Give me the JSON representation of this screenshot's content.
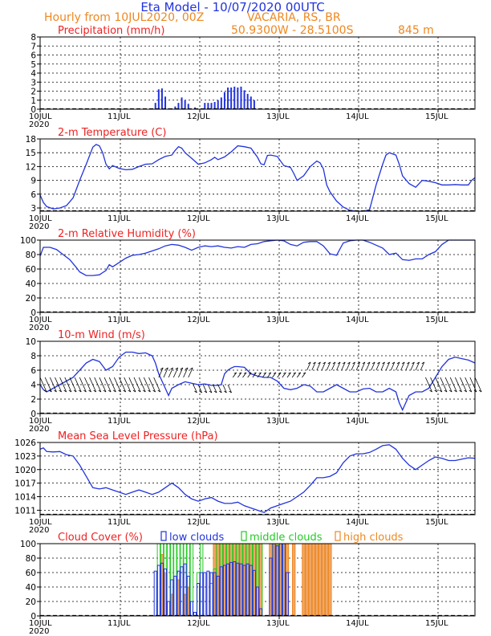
{
  "header": {
    "title": "Eta Model - 10/07/2020 00UTC",
    "subtitle_run": "Hourly from 10JUL2020, 00Z",
    "location": "VACARIA, RS, BR",
    "coords": "50.9300W - 28.5100S",
    "elevation": "845  m"
  },
  "colors": {
    "title": "#2233dd",
    "orange": "#ee8822",
    "panel_title": "#ee2222",
    "blue": "#2233dd",
    "green": "#22cc22",
    "high": "#f0a868",
    "high_edge": "#ee8822"
  },
  "x_axis": {
    "ticks": [
      "10JUL",
      "11JUL",
      "12JUL",
      "13JUL",
      "14JUL",
      "15JUL"
    ],
    "year": "2020"
  },
  "chart_data": [
    {
      "type": "bar",
      "title": "Precipitation (mm/h)",
      "yticks": [
        0,
        1,
        2,
        3,
        4,
        5,
        6,
        7,
        8
      ],
      "ylim": [
        0,
        8
      ],
      "xlim_hours": [
        0,
        132
      ],
      "bars": [
        {
          "x": 35,
          "y": 0.7
        },
        {
          "x": 36,
          "y": 2.2
        },
        {
          "x": 37,
          "y": 2.3
        },
        {
          "x": 38,
          "y": 1.4
        },
        {
          "x": 39,
          "y": 0.1
        },
        {
          "x": 41,
          "y": 0.3
        },
        {
          "x": 42,
          "y": 0.7
        },
        {
          "x": 43,
          "y": 1.3
        },
        {
          "x": 44,
          "y": 1.0
        },
        {
          "x": 45,
          "y": 0.6
        },
        {
          "x": 47,
          "y": 0.2
        },
        {
          "x": 50,
          "y": 0.7
        },
        {
          "x": 51,
          "y": 0.7
        },
        {
          "x": 52,
          "y": 0.7
        },
        {
          "x": 53,
          "y": 0.8
        },
        {
          "x": 54,
          "y": 1.0
        },
        {
          "x": 55,
          "y": 1.3
        },
        {
          "x": 56,
          "y": 1.9
        },
        {
          "x": 57,
          "y": 2.4
        },
        {
          "x": 58,
          "y": 2.4
        },
        {
          "x": 59,
          "y": 2.5
        },
        {
          "x": 60,
          "y": 2.4
        },
        {
          "x": 61,
          "y": 2.5
        },
        {
          "x": 62,
          "y": 2.1
        },
        {
          "x": 63,
          "y": 1.7
        },
        {
          "x": 64,
          "y": 1.4
        },
        {
          "x": 65,
          "y": 1.0
        },
        {
          "x": 74,
          "y": 0.1
        },
        {
          "x": 87,
          "y": 0.1
        }
      ]
    },
    {
      "type": "line",
      "title": "2-m Temperature (C)",
      "yticks": [
        3,
        6,
        9,
        12,
        15,
        18
      ],
      "ylim": [
        2.3,
        18
      ],
      "xlim_hours": [
        0,
        132
      ],
      "x": [
        0,
        1,
        2,
        4,
        6,
        8,
        10,
        12,
        14,
        16,
        17,
        18,
        19,
        20,
        21,
        22,
        24,
        26,
        28,
        30,
        32,
        34,
        36,
        38,
        40,
        41,
        42,
        43,
        44,
        46,
        48,
        50,
        52,
        53,
        54,
        56,
        58,
        60,
        62,
        64,
        66,
        67,
        68,
        69,
        70,
        72,
        74,
        76,
        77,
        78,
        80,
        82,
        84,
        85,
        86,
        87,
        88,
        90,
        92,
        94,
        96,
        98,
        100,
        102,
        104,
        105,
        106,
        108,
        109,
        110,
        112,
        114,
        116,
        118,
        120,
        122,
        124,
        126,
        128,
        130,
        131,
        132
      ],
      "values": [
        5.8,
        4.2,
        3.3,
        2.8,
        3.0,
        3.5,
        5.2,
        9.0,
        12.5,
        16.2,
        16.8,
        16.5,
        15.0,
        12.5,
        11.5,
        12.2,
        11.6,
        11.3,
        11.4,
        12.0,
        12.5,
        12.6,
        13.5,
        14.2,
        14.5,
        15.5,
        16.3,
        16.0,
        15.0,
        13.8,
        12.5,
        12.8,
        13.5,
        14.0,
        13.5,
        14.1,
        15.2,
        16.5,
        16.3,
        16.0,
        14.0,
        12.6,
        12.4,
        14.4,
        14.5,
        14.2,
        12.2,
        11.8,
        10.5,
        9.0,
        10.0,
        12.0,
        13.2,
        12.8,
        11.5,
        8.0,
        6.5,
        4.5,
        3.2,
        2.5,
        2.3,
        2.3,
        2.6,
        8.0,
        12.5,
        14.5,
        15.0,
        14.5,
        12.5,
        10.0,
        8.3,
        7.5,
        9.0,
        8.8,
        8.5,
        8.0,
        8.0,
        8.1,
        8.0,
        8.0,
        9.0,
        9.6
      ]
    },
    {
      "type": "line",
      "title": "2-m Relative Humidity (%)",
      "yticks": [
        0,
        20,
        40,
        60,
        80,
        100
      ],
      "ylim": [
        0,
        100
      ],
      "xlim_hours": [
        0,
        132
      ],
      "x": [
        0,
        1,
        3,
        5,
        7,
        9,
        11,
        12,
        14,
        16,
        18,
        20,
        21,
        22,
        24,
        26,
        28,
        30,
        32,
        34,
        36,
        38,
        40,
        42,
        44,
        46,
        48,
        50,
        52,
        54,
        56,
        58,
        60,
        62,
        64,
        66,
        68,
        70,
        72,
        74,
        76,
        78,
        80,
        82,
        84,
        86,
        88,
        90,
        92,
        94,
        96,
        98,
        100,
        102,
        104,
        106,
        108,
        110,
        112,
        114,
        116,
        118,
        120,
        122,
        124,
        126,
        128,
        130,
        132
      ],
      "values": [
        78,
        90,
        90,
        87,
        80,
        73,
        62,
        56,
        51,
        51,
        52,
        58,
        66,
        63,
        69,
        75,
        79,
        80,
        82,
        85,
        88,
        92,
        94,
        93,
        90,
        86,
        90,
        92,
        91,
        92,
        90,
        89,
        91,
        90,
        94,
        95,
        98,
        99,
        100,
        99,
        94,
        92,
        97,
        98,
        98,
        92,
        81,
        79,
        96,
        99,
        100,
        100,
        97,
        93,
        89,
        80,
        82,
        73,
        72,
        74,
        74,
        80,
        84,
        94,
        100,
        100,
        100,
        100,
        100
      ]
    },
    {
      "type": "line",
      "title": "10-m Wind (m/s)",
      "yticks": [
        0,
        2,
        4,
        6,
        8,
        10
      ],
      "ylim": [
        0,
        10
      ],
      "xlim_hours": [
        0,
        132
      ],
      "x": [
        0,
        1,
        2,
        4,
        6,
        8,
        10,
        12,
        14,
        16,
        18,
        20,
        22,
        24,
        26,
        28,
        30,
        32,
        34,
        35,
        36,
        37,
        38,
        39,
        40,
        42,
        44,
        46,
        48,
        50,
        52,
        54,
        55,
        56,
        57,
        58,
        59,
        60,
        62,
        64,
        66,
        68,
        70,
        72,
        74,
        76,
        78,
        80,
        82,
        84,
        86,
        88,
        90,
        92,
        94,
        96,
        98,
        100,
        102,
        104,
        106,
        108,
        109,
        110,
        111,
        112,
        114,
        116,
        118,
        120,
        122,
        124,
        126,
        128,
        130,
        132
      ],
      "values": [
        4.0,
        3.3,
        3.0,
        3.5,
        4.0,
        4.5,
        5.0,
        6.0,
        7.0,
        7.5,
        7.2,
        6.0,
        6.5,
        7.8,
        8.5,
        8.5,
        8.3,
        8.4,
        8.0,
        7.0,
        5.5,
        4.5,
        3.5,
        2.5,
        3.5,
        4.0,
        4.4,
        4.2,
        4.0,
        4.1,
        3.9,
        3.9,
        4.0,
        5.5,
        6.0,
        6.3,
        6.5,
        6.5,
        6.4,
        5.5,
        5.2,
        5.0,
        5.0,
        4.5,
        3.5,
        3.3,
        3.5,
        4.0,
        3.8,
        3.0,
        3.0,
        3.5,
        4.0,
        3.5,
        3.0,
        3.0,
        3.4,
        3.5,
        3.0,
        3.0,
        3.5,
        3.0,
        1.5,
        0.5,
        1.5,
        2.5,
        3.0,
        3.0,
        3.5,
        5.0,
        6.5,
        7.5,
        7.8,
        7.6,
        7.4,
        7.0
      ]
    },
    {
      "type": "line",
      "title": "Mean Sea Level Pressure (hPa)",
      "yticks": [
        1011,
        1014,
        1017,
        1020,
        1023,
        1026
      ],
      "ylim": [
        1010,
        1026
      ],
      "xlim_hours": [
        0,
        132
      ],
      "x": [
        0,
        1,
        2,
        4,
        6,
        8,
        10,
        12,
        14,
        16,
        18,
        20,
        22,
        24,
        26,
        28,
        30,
        32,
        34,
        36,
        38,
        40,
        42,
        44,
        46,
        48,
        50,
        52,
        54,
        56,
        58,
        60,
        62,
        64,
        66,
        68,
        70,
        72,
        74,
        76,
        78,
        80,
        82,
        84,
        86,
        88,
        90,
        92,
        94,
        96,
        98,
        100,
        102,
        104,
        106,
        108,
        110,
        112,
        114,
        116,
        118,
        120,
        122,
        124,
        126,
        128,
        130,
        132
      ],
      "values": [
        1024.5,
        1024.8,
        1024.0,
        1023.9,
        1024.0,
        1023.3,
        1023.0,
        1021.0,
        1018.5,
        1016.0,
        1015.7,
        1016.0,
        1015.5,
        1015.0,
        1014.5,
        1015.0,
        1015.5,
        1015.0,
        1014.5,
        1015.0,
        1016.0,
        1017.0,
        1016.0,
        1014.5,
        1013.5,
        1013.0,
        1013.5,
        1013.8,
        1013.0,
        1012.5,
        1012.5,
        1012.8,
        1012.0,
        1011.5,
        1011.0,
        1010.5,
        1011.5,
        1012.0,
        1012.5,
        1013.0,
        1014.0,
        1015.0,
        1016.5,
        1018.2,
        1018.2,
        1018.5,
        1019.3,
        1021.5,
        1023.0,
        1023.5,
        1023.5,
        1023.8,
        1024.5,
        1025.3,
        1025.5,
        1024.5,
        1022.5,
        1021.0,
        1020.0,
        1021.0,
        1022.0,
        1022.8,
        1022.5,
        1022.0,
        1022.0,
        1022.3,
        1022.6,
        1022.5
      ]
    },
    {
      "type": "bar",
      "title": "Cloud Cover (%)",
      "legend": [
        "low clouds",
        "middle clouds",
        "high clouds"
      ],
      "yticks": [
        0,
        20,
        40,
        60,
        80,
        100
      ],
      "ylim": [
        0,
        100
      ],
      "xlim_hours": [
        0,
        132
      ],
      "series": [
        {
          "name": "high clouds",
          "x": [
            37,
            38,
            40,
            42,
            44,
            45,
            53,
            54,
            55,
            56,
            57,
            58,
            59,
            60,
            61,
            62,
            63,
            64,
            65,
            66,
            67,
            70,
            71,
            72,
            73,
            74,
            75,
            77,
            80,
            81,
            82,
            83,
            84,
            85,
            86,
            87,
            88
          ],
          "values": [
            85,
            60,
            30,
            50,
            30,
            40,
            100,
            100,
            100,
            100,
            100,
            100,
            100,
            100,
            100,
            100,
            100,
            100,
            100,
            100,
            100,
            100,
            100,
            100,
            100,
            100,
            100,
            100,
            100,
            100,
            100,
            100,
            100,
            100,
            100,
            100,
            100
          ]
        },
        {
          "name": "middle clouds",
          "x": [
            36,
            37,
            38,
            39,
            40,
            41,
            42,
            43,
            44,
            45,
            46,
            48,
            49,
            52,
            53,
            54,
            55,
            56,
            57,
            58,
            59,
            60,
            61,
            62,
            63,
            64,
            65,
            66,
            67,
            71,
            72,
            73,
            74
          ],
          "values": [
            100,
            100,
            100,
            100,
            100,
            100,
            100,
            100,
            100,
            100,
            100,
            60,
            100,
            45,
            65,
            100,
            100,
            100,
            100,
            100,
            100,
            100,
            100,
            100,
            100,
            100,
            100,
            100,
            100,
            100,
            100,
            100,
            100
          ]
        },
        {
          "name": "low clouds",
          "x": [
            35,
            36,
            37,
            38,
            39,
            40,
            41,
            42,
            43,
            44,
            45,
            46,
            47,
            48,
            49,
            50,
            51,
            52,
            53,
            54,
            55,
            56,
            57,
            58,
            59,
            60,
            61,
            62,
            63,
            64,
            65,
            66,
            67,
            70,
            71,
            72,
            73,
            74,
            75
          ],
          "values": [
            62,
            70,
            73,
            65,
            20,
            50,
            55,
            62,
            68,
            72,
            55,
            20,
            5,
            45,
            60,
            60,
            62,
            60,
            60,
            55,
            68,
            70,
            72,
            74,
            75,
            73,
            72,
            70,
            72,
            70,
            63,
            40,
            10,
            80,
            100,
            97,
            100,
            100,
            60
          ]
        }
      ]
    }
  ]
}
